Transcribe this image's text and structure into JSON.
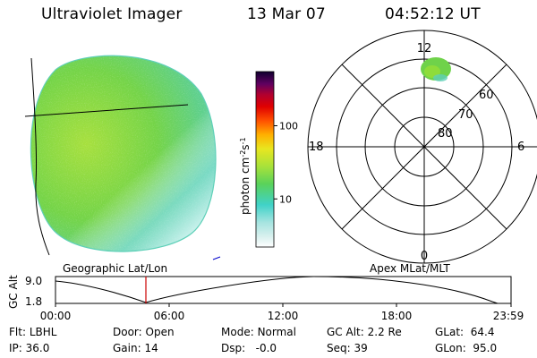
{
  "header": {
    "title": "Ultraviolet Imager",
    "date": "13 Mar 07",
    "time": "04:52:12 UT"
  },
  "colorbar": {
    "unit_main": "photon cm",
    "unit_sup1": "-2",
    "unit_mid": "s",
    "unit_sup2": "-1",
    "ticks": [
      "100",
      "10"
    ],
    "scale": "log"
  },
  "polar_plot": {
    "mlt_labels": {
      "top": "12",
      "left": "18",
      "right": "6",
      "bottom": "0"
    },
    "lat_labels": [
      "60",
      "70",
      "80"
    ]
  },
  "orbit_panel": {
    "ylabel": "GC Alt",
    "ytick_top": "9.0",
    "ytick_bottom": "1.8",
    "left_caption": "Geographic Lat/Lon",
    "right_caption": "Apex MLat/MLT",
    "time_ticks": [
      "00:00",
      "06:00",
      "12:00",
      "18:00",
      "23:59"
    ]
  },
  "info": {
    "row1": [
      {
        "label": "Flt:",
        "value": "LBHL"
      },
      {
        "label": "Door:",
        "value": "Open"
      },
      {
        "label": "Mode:",
        "value": "Normal"
      },
      {
        "label": "GC Alt:",
        "value": "2.2 Re"
      },
      {
        "label": "GLat:",
        "value": "64.4"
      }
    ],
    "row2": [
      {
        "label": "IP:",
        "value": "36.0"
      },
      {
        "label": "Gain:",
        "value": "14"
      },
      {
        "label": "Dsp:",
        "value": "-0.0"
      },
      {
        "label": "Seq:",
        "value": "39"
      },
      {
        "label": "GLon:",
        "value": "95.0"
      }
    ]
  },
  "colors": {
    "earth_main": "#6fd24a",
    "earth_left": "#aee23c",
    "earth_teal": "#5fd2b4",
    "earth_light": "#c9f1ee",
    "oval": "#6fd24a",
    "marker": "#cc0000"
  }
}
